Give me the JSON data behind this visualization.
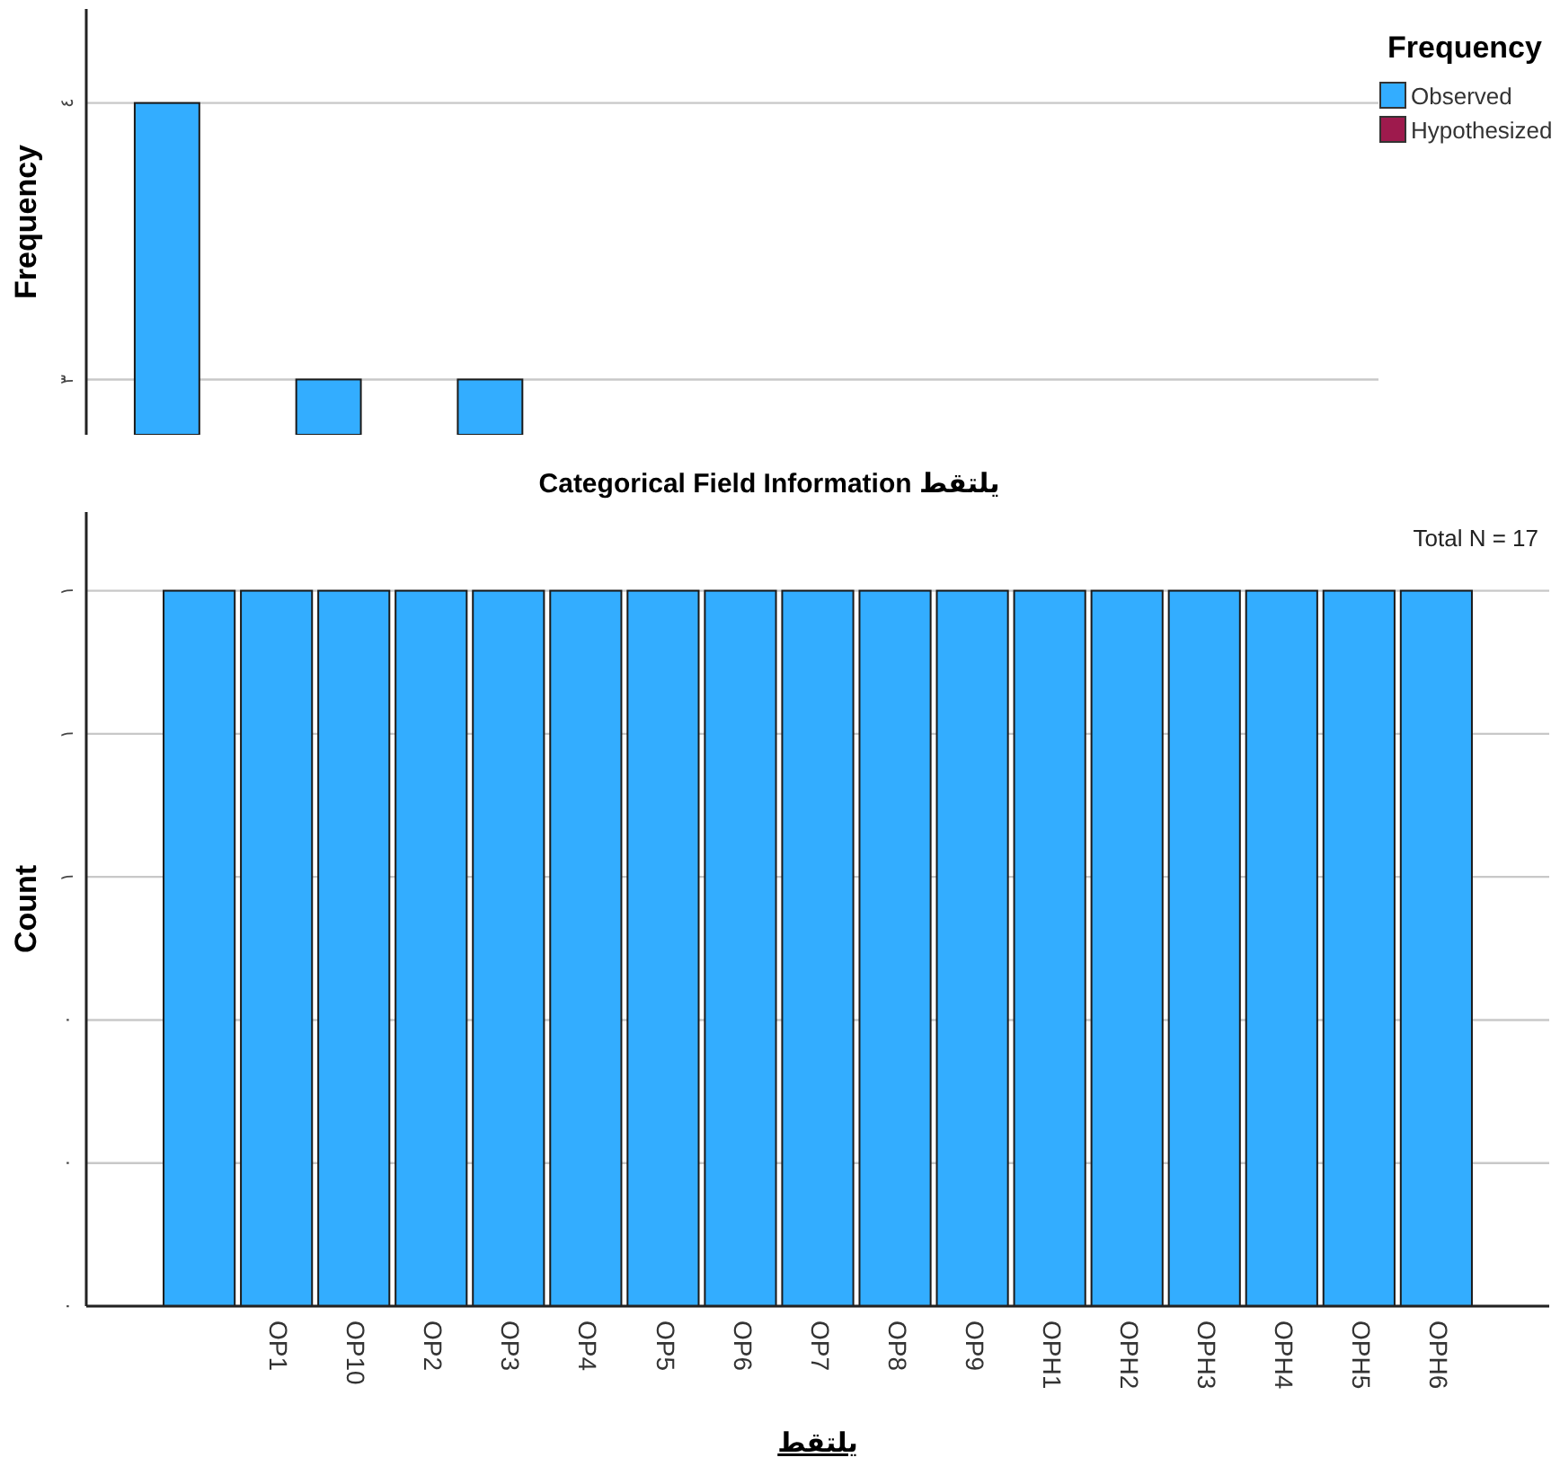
{
  "chart_data": [
    {
      "type": "bar",
      "ylabel": "Frequency",
      "legend_title": "Frequency",
      "legend": "top right",
      "grid": "y",
      "categories": [
        null,
        null,
        null,
        null,
        null,
        null,
        null,
        null
      ],
      "series": [
        {
          "name": "Observed",
          "color": "#33adff",
          "values": [
            4,
            3,
            3,
            null,
            null,
            null,
            null,
            null
          ]
        },
        {
          "name": "Hypothesized",
          "color": "#9e1a4d",
          "values": [
            null,
            null,
            null,
            null,
            null,
            null,
            null,
            null
          ]
        }
      ],
      "ylim": [
        2.8,
        4.34
      ],
      "yticks": [
        {
          "value": 3,
          "label": "٣"
        },
        {
          "value": 4,
          "label": "٤"
        }
      ]
    },
    {
      "type": "bar",
      "title": "Categorical Field Information يلتقط",
      "xlabel": "يلتقط",
      "ylabel": "Count",
      "grid": "y",
      "annotations": [
        "Total N =  17"
      ],
      "categories": [
        null,
        "OP1",
        "OP10",
        "OP2",
        "OP3",
        "OP4",
        "OP5",
        "OP6",
        "OP7",
        "OP8",
        "OP9",
        "OPH1",
        "OPH2",
        "OPH3",
        "OPH4",
        "OPH5",
        "OPH6"
      ],
      "series": [
        {
          "color": "#33adff",
          "values": [
            1,
            1,
            1,
            1,
            1,
            1,
            1,
            1,
            1,
            1,
            1,
            1,
            1,
            1,
            1,
            1,
            1
          ]
        }
      ],
      "ylim": [
        0,
        1.11
      ],
      "yticks": [
        {
          "value": 0,
          "label": "٠"
        },
        {
          "value": 0.2,
          "label": "٠"
        },
        {
          "value": 0.4,
          "label": "٠"
        },
        {
          "value": 0.6,
          "label": "١"
        },
        {
          "value": 0.8,
          "label": "١"
        },
        {
          "value": 1,
          "label": "١"
        }
      ]
    }
  ]
}
